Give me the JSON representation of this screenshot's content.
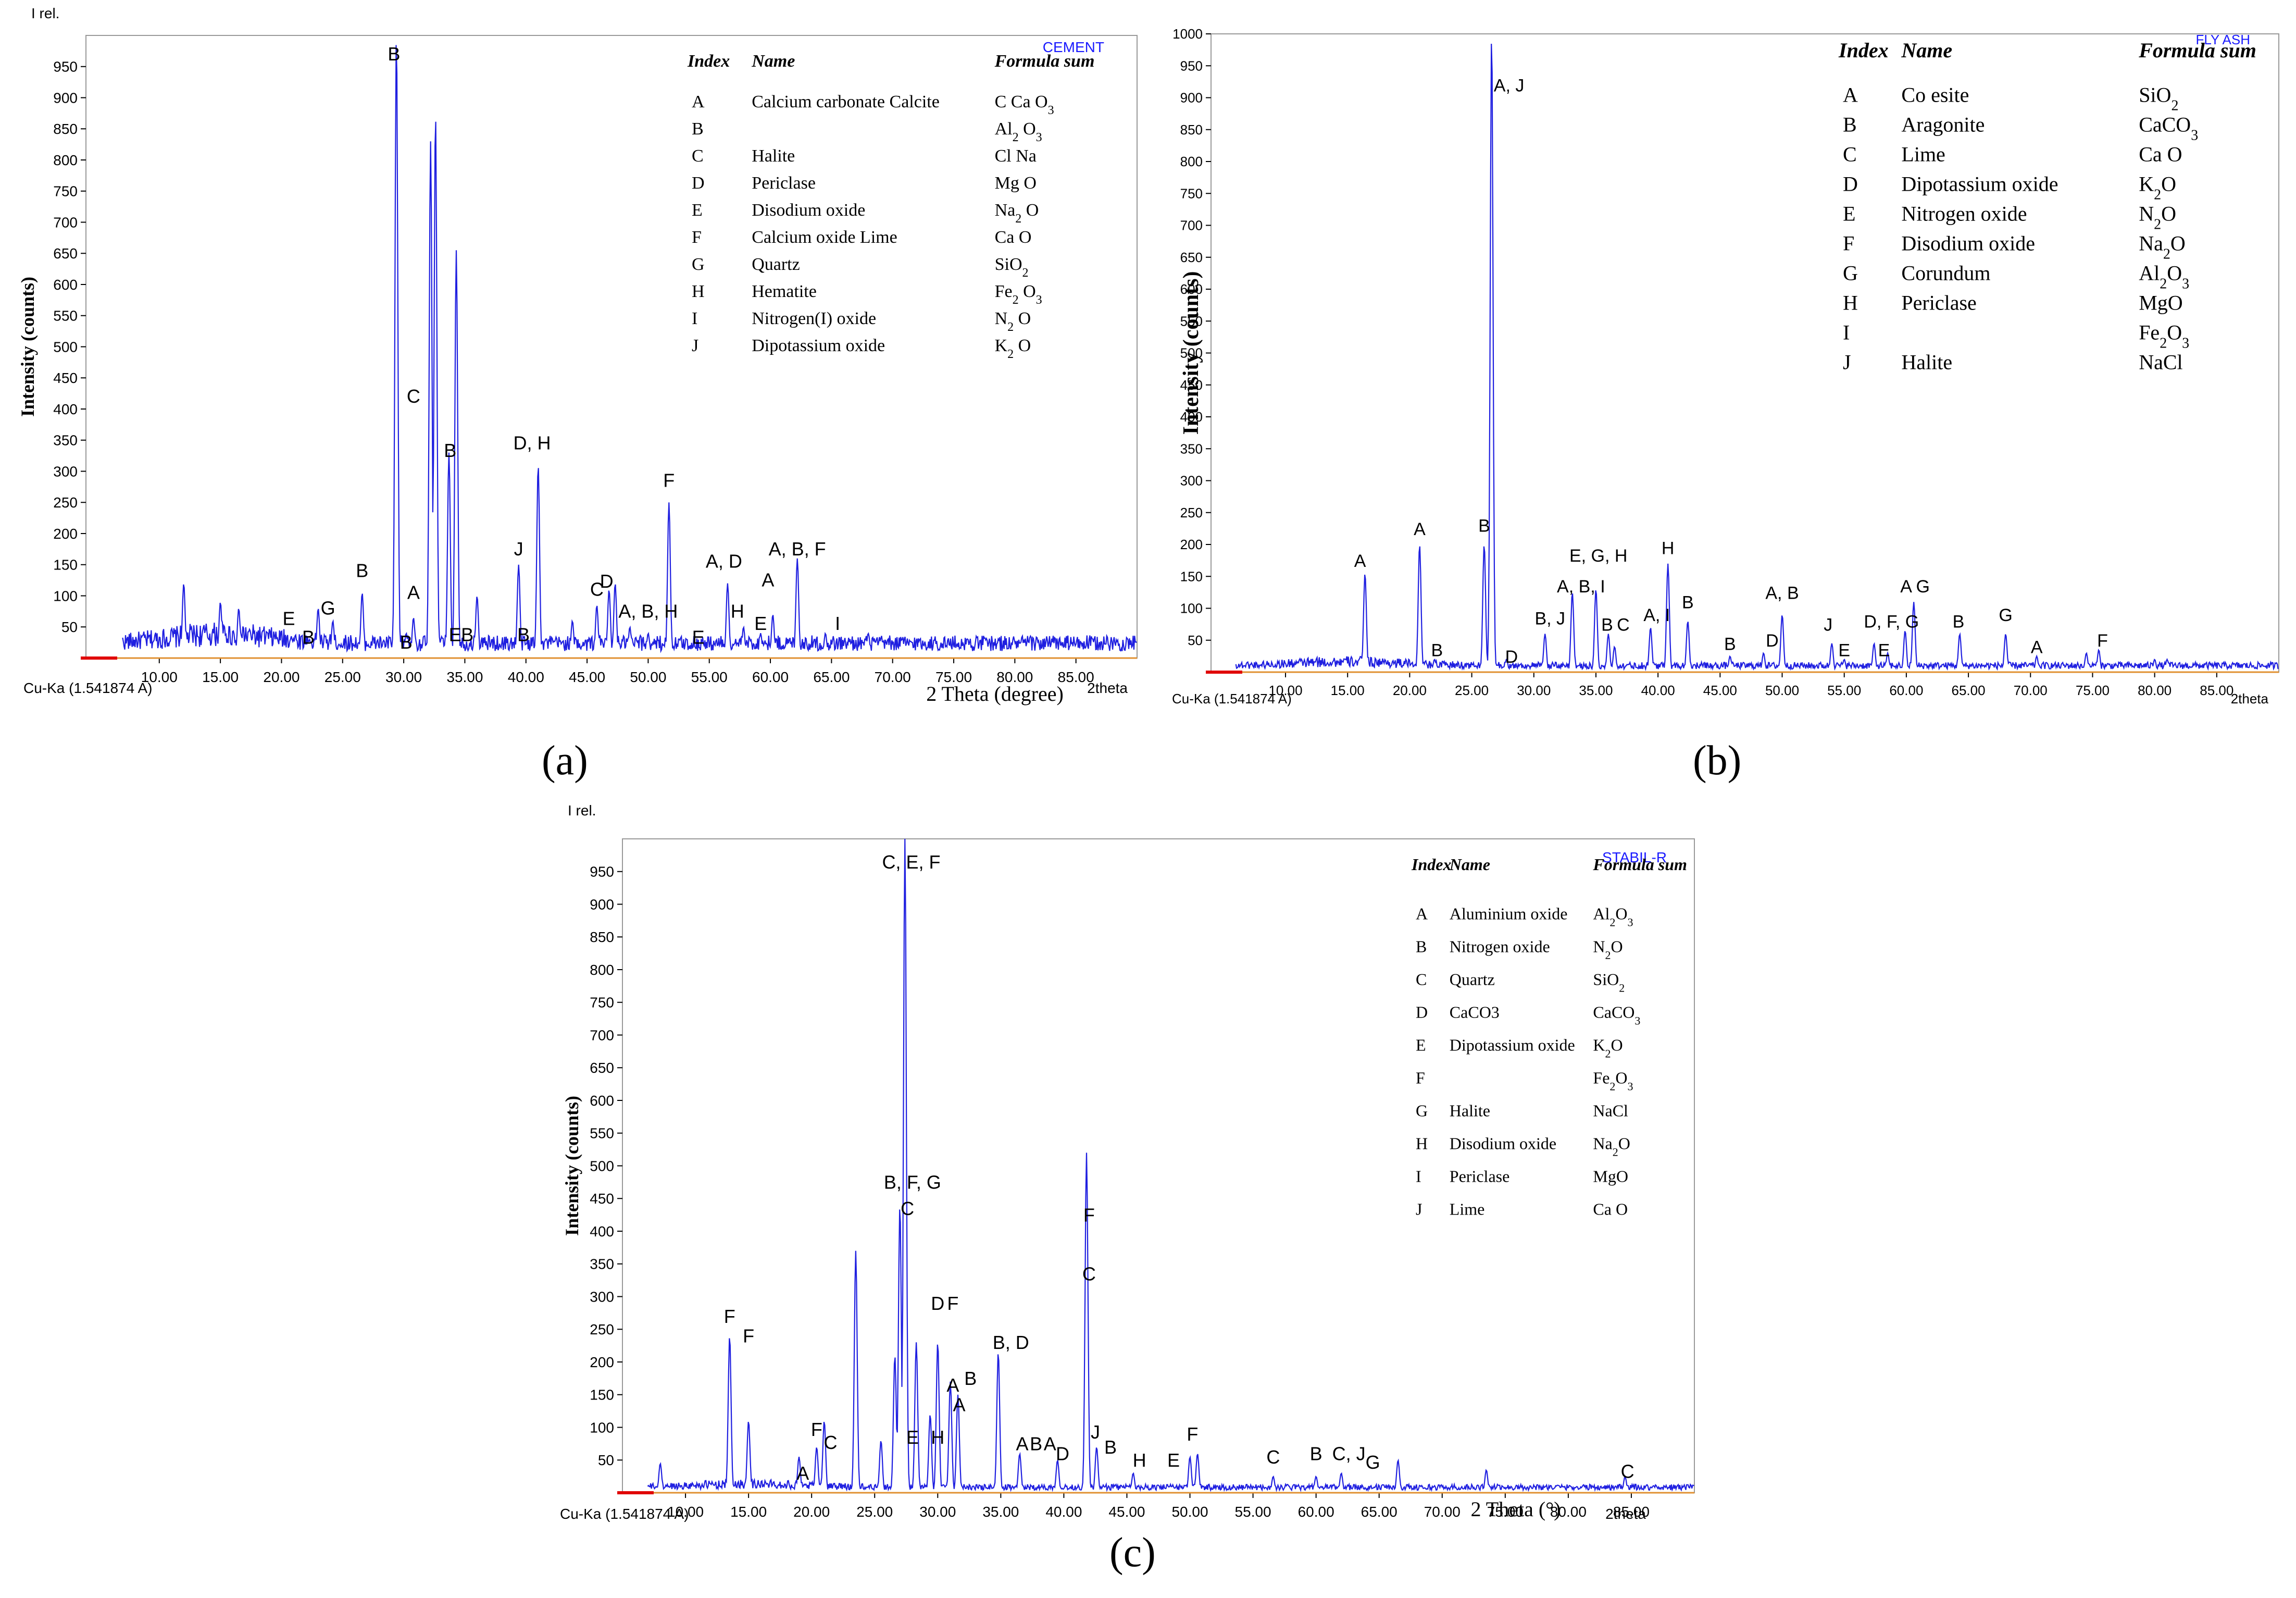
{
  "captions": [
    "(a)",
    "(b)",
    "(c)"
  ],
  "chart_data": [
    {
      "type": "line",
      "panel": "a",
      "tag": "CEMENT",
      "corner_label": "I rel.",
      "source_label": "Cu-Ka (1.541874 A)",
      "axis_unit_label": "2theta",
      "xlabel": "2 Theta (degree)",
      "ylabel": "Intensity (counts)",
      "xlim": [
        4,
        90
      ],
      "ylim": [
        0,
        1000
      ],
      "xticks": [
        "10.00",
        "15.00",
        "20.00",
        "25.00",
        "30.00",
        "35.00",
        "40.00",
        "45.00",
        "50.00",
        "55.00",
        "60.00",
        "65.00",
        "70.00",
        "75.00",
        "80.00",
        "85.00"
      ],
      "yticks": [
        "50",
        "100",
        "150",
        "200",
        "250",
        "300",
        "350",
        "400",
        "450",
        "500",
        "550",
        "600",
        "650",
        "700",
        "750",
        "800",
        "850",
        "900",
        "950"
      ],
      "background": 28,
      "peaks": [
        {
          "x": 12.0,
          "y": 120
        },
        {
          "x": 15.0,
          "y": 90
        },
        {
          "x": 16.5,
          "y": 80
        },
        {
          "x": 20.8,
          "y": 35
        },
        {
          "x": 22.0,
          "y": 25
        },
        {
          "x": 23.0,
          "y": 80
        },
        {
          "x": 24.2,
          "y": 60
        },
        {
          "x": 26.6,
          "y": 105
        },
        {
          "x": 29.4,
          "y": 1000
        },
        {
          "x": 30.2,
          "y": 40
        },
        {
          "x": 30.8,
          "y": 65
        },
        {
          "x": 32.2,
          "y": 830
        },
        {
          "x": 32.6,
          "y": 875
        },
        {
          "x": 33.7,
          "y": 330
        },
        {
          "x": 34.3,
          "y": 655
        },
        {
          "x": 36.0,
          "y": 100
        },
        {
          "x": 39.4,
          "y": 150
        },
        {
          "x": 41.0,
          "y": 310
        },
        {
          "x": 43.8,
          "y": 60
        },
        {
          "x": 45.8,
          "y": 85
        },
        {
          "x": 46.8,
          "y": 110
        },
        {
          "x": 47.3,
          "y": 120
        },
        {
          "x": 48.5,
          "y": 50
        },
        {
          "x": 50.0,
          "y": 40
        },
        {
          "x": 51.7,
          "y": 250
        },
        {
          "x": 56.5,
          "y": 120
        },
        {
          "x": 57.8,
          "y": 50
        },
        {
          "x": 59.2,
          "y": 40
        },
        {
          "x": 60.2,
          "y": 70
        },
        {
          "x": 62.2,
          "y": 160
        },
        {
          "x": 64.5,
          "y": 40
        },
        {
          "x": 68.0,
          "y": 40
        }
      ],
      "annotations": [
        {
          "text": "B",
          "x": 29.2,
          "y": 955
        },
        {
          "text": "C",
          "x": 30.8,
          "y": 405
        },
        {
          "text": "B",
          "x": 33.8,
          "y": 318
        },
        {
          "text": "D, H",
          "x": 40.5,
          "y": 330
        },
        {
          "text": "F",
          "x": 51.7,
          "y": 270
        },
        {
          "text": "A, D",
          "x": 56.2,
          "y": 140
        },
        {
          "text": "A, B, F",
          "x": 62.2,
          "y": 160
        },
        {
          "text": "J",
          "x": 39.4,
          "y": 160
        },
        {
          "text": "B",
          "x": 26.6,
          "y": 125
        },
        {
          "text": "A",
          "x": 30.8,
          "y": 90
        },
        {
          "text": "G",
          "x": 23.8,
          "y": 65
        },
        {
          "text": "E",
          "x": 20.6,
          "y": 48
        },
        {
          "text": "B",
          "x": 22.2,
          "y": 18
        },
        {
          "text": "B",
          "x": 30.2,
          "y": 10
        },
        {
          "text": "E",
          "x": 34.2,
          "y": 22
        },
        {
          "text": "B",
          "x": 35.2,
          "y": 22
        },
        {
          "text": "B",
          "x": 39.8,
          "y": 22
        },
        {
          "text": "C",
          "x": 45.8,
          "y": 95
        },
        {
          "text": "D",
          "x": 46.6,
          "y": 108
        },
        {
          "text": "A, B, H",
          "x": 50.0,
          "y": 60
        },
        {
          "text": "E",
          "x": 54.1,
          "y": 18
        },
        {
          "text": "H",
          "x": 57.3,
          "y": 60
        },
        {
          "text": "E",
          "x": 59.2,
          "y": 40
        },
        {
          "text": "A",
          "x": 59.8,
          "y": 110
        },
        {
          "text": "I",
          "x": 65.5,
          "y": 40
        }
      ],
      "legend": {
        "headers": [
          "Index",
          "Name",
          "Formula sum"
        ],
        "rows": [
          {
            "index": "A",
            "name": "Calcium carbonate Calcite",
            "formula": "C Ca O3"
          },
          {
            "index": "B",
            "name": "",
            "formula": "Al2 O3"
          },
          {
            "index": "C",
            "name": "Halite",
            "formula": "Cl Na"
          },
          {
            "index": "D",
            "name": "Periclase",
            "formula": "Mg O"
          },
          {
            "index": "E",
            "name": "Disodium oxide",
            "formula": "Na2 O"
          },
          {
            "index": "F",
            "name": "Calcium oxide Lime",
            "formula": "Ca O"
          },
          {
            "index": "G",
            "name": "Quartz",
            "formula": "SiO2"
          },
          {
            "index": "H",
            "name": "Hematite",
            "formula": "Fe2 O3"
          },
          {
            "index": "I",
            "name": "Nitrogen(I) oxide",
            "formula": "N2 O"
          },
          {
            "index": "J",
            "name": "Dipotassium oxide",
            "formula": "K2 O"
          }
        ]
      }
    },
    {
      "type": "line",
      "panel": "b",
      "tag": "FLY ASH",
      "corner_label": "",
      "source_label": "Cu-Ka (1.541874 A)",
      "axis_unit_label": "2theta",
      "xlabel": "",
      "ylabel": "Intensity (counts)",
      "xlim": [
        4,
        90
      ],
      "ylim": [
        0,
        1000
      ],
      "xticks": [
        "10.00",
        "15.00",
        "20.00",
        "25.00",
        "30.00",
        "35.00",
        "40.00",
        "45.00",
        "50.00",
        "55.00",
        "60.00",
        "65.00",
        "70.00",
        "75.00",
        "80.00",
        "85.00"
      ],
      "yticks": [
        "50",
        "100",
        "150",
        "200",
        "250",
        "300",
        "350",
        "400",
        "450",
        "500",
        "550",
        "600",
        "650",
        "700",
        "750",
        "800",
        "850",
        "900",
        "950",
        "1000"
      ],
      "background": 12,
      "peaks": [
        {
          "x": 16.4,
          "y": 155
        },
        {
          "x": 20.8,
          "y": 200
        },
        {
          "x": 22.0,
          "y": 20
        },
        {
          "x": 26.0,
          "y": 200
        },
        {
          "x": 26.6,
          "y": 1000
        },
        {
          "x": 27.8,
          "y": 20
        },
        {
          "x": 30.9,
          "y": 60
        },
        {
          "x": 33.1,
          "y": 125
        },
        {
          "x": 35.0,
          "y": 130
        },
        {
          "x": 36.0,
          "y": 60
        },
        {
          "x": 36.5,
          "y": 40
        },
        {
          "x": 39.4,
          "y": 70
        },
        {
          "x": 40.8,
          "y": 170
        },
        {
          "x": 42.4,
          "y": 80
        },
        {
          "x": 45.8,
          "y": 25
        },
        {
          "x": 48.5,
          "y": 30
        },
        {
          "x": 50.0,
          "y": 90
        },
        {
          "x": 54.0,
          "y": 45
        },
        {
          "x": 55.0,
          "y": 20
        },
        {
          "x": 57.4,
          "y": 45
        },
        {
          "x": 58.5,
          "y": 30
        },
        {
          "x": 59.9,
          "y": 65
        },
        {
          "x": 60.6,
          "y": 110
        },
        {
          "x": 64.3,
          "y": 60
        },
        {
          "x": 68.0,
          "y": 60
        },
        {
          "x": 70.5,
          "y": 25
        },
        {
          "x": 74.5,
          "y": 30
        },
        {
          "x": 75.5,
          "y": 35
        },
        {
          "x": 80.0,
          "y": 20
        },
        {
          "x": 81.0,
          "y": 20
        }
      ],
      "annotations": [
        {
          "text": "A, J",
          "x": 28.0,
          "y": 905
        },
        {
          "text": "A",
          "x": 16.0,
          "y": 160
        },
        {
          "text": "A",
          "x": 20.8,
          "y": 210
        },
        {
          "text": "B",
          "x": 26.0,
          "y": 215
        },
        {
          "text": "B",
          "x": 22.2,
          "y": 20
        },
        {
          "text": "D",
          "x": 28.2,
          "y": 10
        },
        {
          "text": "B, J",
          "x": 31.3,
          "y": 70
        },
        {
          "text": "A, B, I",
          "x": 33.8,
          "y": 120
        },
        {
          "text": "E, G, H",
          "x": 35.2,
          "y": 168
        },
        {
          "text": "B",
          "x": 35.9,
          "y": 60
        },
        {
          "text": "C",
          "x": 37.2,
          "y": 60
        },
        {
          "text": "A, I",
          "x": 39.9,
          "y": 75
        },
        {
          "text": "H",
          "x": 40.8,
          "y": 180
        },
        {
          "text": "B",
          "x": 42.4,
          "y": 95
        },
        {
          "text": "B",
          "x": 45.8,
          "y": 30
        },
        {
          "text": "D",
          "x": 49.2,
          "y": 35
        },
        {
          "text": "A, B",
          "x": 50.0,
          "y": 110
        },
        {
          "text": "J",
          "x": 53.7,
          "y": 60
        },
        {
          "text": "E",
          "x": 55.0,
          "y": 20
        },
        {
          "text": "D, F, G",
          "x": 58.8,
          "y": 65
        },
        {
          "text": "E",
          "x": 58.2,
          "y": 20
        },
        {
          "text": "A G",
          "x": 60.7,
          "y": 120
        },
        {
          "text": "B",
          "x": 64.2,
          "y": 65
        },
        {
          "text": "G",
          "x": 68.0,
          "y": 75
        },
        {
          "text": "A",
          "x": 70.5,
          "y": 25
        },
        {
          "text": "F",
          "x": 75.8,
          "y": 35
        }
      ],
      "legend": {
        "headers": [
          "Index",
          "Name",
          "Formula sum"
        ],
        "rows": [
          {
            "index": "A",
            "name": "Co esite",
            "formula": "SiO2"
          },
          {
            "index": "B",
            "name": "Aragonite",
            "formula": "CaCO3"
          },
          {
            "index": "C",
            "name": "Lime",
            "formula": "Ca O"
          },
          {
            "index": "D",
            "name": "Dipotassium oxide",
            "formula": "K2O"
          },
          {
            "index": "E",
            "name": "Nitrogen oxide",
            "formula": "N2O"
          },
          {
            "index": "F",
            "name": "Disodium oxide",
            "formula": "Na2O"
          },
          {
            "index": "G",
            "name": "Corundum",
            "formula": "Al2O3"
          },
          {
            "index": "H",
            "name": "Periclase",
            "formula": "MgO"
          },
          {
            "index": "I",
            "name": "",
            "formula": "Fe2O3"
          },
          {
            "index": "J",
            "name": "Halite",
            "formula": "NaCl"
          }
        ]
      }
    },
    {
      "type": "line",
      "panel": "c",
      "tag": "STABIL-R",
      "corner_label": "I rel.",
      "source_label": "Cu-Ka (1.541874 A)",
      "axis_unit_label": "2theta",
      "xlabel": "2 Theta (°)",
      "ylabel": "Intensity (counts)",
      "xlim": [
        5,
        90
      ],
      "ylim": [
        0,
        1000
      ],
      "xticks": [
        "10.00",
        "15.00",
        "20.00",
        "25.00",
        "30.00",
        "35.00",
        "40.00",
        "45.00",
        "50.00",
        "55.00",
        "60.00",
        "65.00",
        "70.00",
        "75.00",
        "80.00",
        "85.00"
      ],
      "yticks": [
        "50",
        "100",
        "150",
        "200",
        "250",
        "300",
        "350",
        "400",
        "450",
        "500",
        "550",
        "600",
        "650",
        "700",
        "750",
        "800",
        "850",
        "900",
        "950"
      ],
      "background": 10,
      "peaks": [
        {
          "x": 8.0,
          "y": 45
        },
        {
          "x": 13.5,
          "y": 240
        },
        {
          "x": 15.0,
          "y": 110
        },
        {
          "x": 19.0,
          "y": 55
        },
        {
          "x": 20.4,
          "y": 70
        },
        {
          "x": 21.0,
          "y": 110
        },
        {
          "x": 23.5,
          "y": 370
        },
        {
          "x": 25.5,
          "y": 80
        },
        {
          "x": 26.6,
          "y": 210
        },
        {
          "x": 27.0,
          "y": 440
        },
        {
          "x": 27.4,
          "y": 1000
        },
        {
          "x": 28.3,
          "y": 230
        },
        {
          "x": 29.4,
          "y": 120
        },
        {
          "x": 30.0,
          "y": 230
        },
        {
          "x": 31.0,
          "y": 170
        },
        {
          "x": 31.6,
          "y": 150
        },
        {
          "x": 34.8,
          "y": 215
        },
        {
          "x": 36.5,
          "y": 60
        },
        {
          "x": 39.5,
          "y": 50
        },
        {
          "x": 41.8,
          "y": 520
        },
        {
          "x": 42.6,
          "y": 70
        },
        {
          "x": 45.5,
          "y": 30
        },
        {
          "x": 50.0,
          "y": 55
        },
        {
          "x": 50.6,
          "y": 60
        },
        {
          "x": 56.6,
          "y": 25
        },
        {
          "x": 60.0,
          "y": 25
        },
        {
          "x": 62.0,
          "y": 30
        },
        {
          "x": 66.5,
          "y": 50
        },
        {
          "x": 73.5,
          "y": 35
        },
        {
          "x": 84.5,
          "y": 25
        }
      ],
      "annotations": [
        {
          "text": "C, E, F",
          "x": 27.9,
          "y": 950
        },
        {
          "text": "B, F, G",
          "x": 28.0,
          "y": 460
        },
        {
          "text": "C",
          "x": 27.6,
          "y": 420
        },
        {
          "text": "F",
          "x": 13.5,
          "y": 255
        },
        {
          "text": "F",
          "x": 15.0,
          "y": 225
        },
        {
          "text": "F",
          "x": 20.4,
          "y": 82
        },
        {
          "text": "C",
          "x": 21.5,
          "y": 62
        },
        {
          "text": "A",
          "x": 19.3,
          "y": 15
        },
        {
          "text": "E",
          "x": 28.0,
          "y": 70
        },
        {
          "text": "H",
          "x": 30.0,
          "y": 70
        },
        {
          "text": "D",
          "x": 30.0,
          "y": 275
        },
        {
          "text": "F",
          "x": 31.2,
          "y": 275
        },
        {
          "text": "A",
          "x": 31.2,
          "y": 150
        },
        {
          "text": "A",
          "x": 31.7,
          "y": 120
        },
        {
          "text": "B",
          "x": 32.6,
          "y": 160
        },
        {
          "text": "B, D",
          "x": 35.8,
          "y": 215
        },
        {
          "text": "A",
          "x": 36.7,
          "y": 60
        },
        {
          "text": "B",
          "x": 37.8,
          "y": 60
        },
        {
          "text": "A",
          "x": 38.9,
          "y": 60
        },
        {
          "text": "D",
          "x": 39.9,
          "y": 45
        },
        {
          "text": "J",
          "x": 42.5,
          "y": 78
        },
        {
          "text": "F",
          "x": 42.0,
          "y": 410
        },
        {
          "text": "C",
          "x": 42.0,
          "y": 320
        },
        {
          "text": "B",
          "x": 43.7,
          "y": 55
        },
        {
          "text": "H",
          "x": 46.0,
          "y": 35
        },
        {
          "text": "E",
          "x": 48.7,
          "y": 35
        },
        {
          "text": "F",
          "x": 50.2,
          "y": 75
        },
        {
          "text": "C",
          "x": 56.6,
          "y": 40
        },
        {
          "text": "B",
          "x": 60.0,
          "y": 45
        },
        {
          "text": "C, J",
          "x": 62.6,
          "y": 45
        },
        {
          "text": "G",
          "x": 64.5,
          "y": 32
        },
        {
          "text": "C",
          "x": 84.7,
          "y": 18
        }
      ],
      "legend": {
        "headers": [
          "Index",
          "Name",
          "Formula sum"
        ],
        "rows": [
          {
            "index": "A",
            "name": "Aluminium oxide",
            "formula": "Al2O3"
          },
          {
            "index": "B",
            "name": "Nitrogen oxide",
            "formula": "N2O"
          },
          {
            "index": "C",
            "name": "Quartz",
            "formula": "SiO2"
          },
          {
            "index": "D",
            "name": "CaCO3",
            "formula": "CaCO3"
          },
          {
            "index": "E",
            "name": "Dipotassium oxide",
            "formula": "K2O"
          },
          {
            "index": "F",
            "name": "",
            "formula": "Fe2O3"
          },
          {
            "index": "G",
            "name": "Halite",
            "formula": "NaCl"
          },
          {
            "index": "H",
            "name": "Disodium oxide",
            "formula": "Na2O"
          },
          {
            "index": "I",
            "name": "Periclase",
            "formula": "MgO"
          },
          {
            "index": "J",
            "name": "Lime",
            "formula": "Ca O"
          }
        ]
      }
    }
  ],
  "colors": {
    "trace": "#1f1fe0",
    "tag": "#1a1aff",
    "baseline": "#e09030",
    "start_mark": "#e00000"
  }
}
